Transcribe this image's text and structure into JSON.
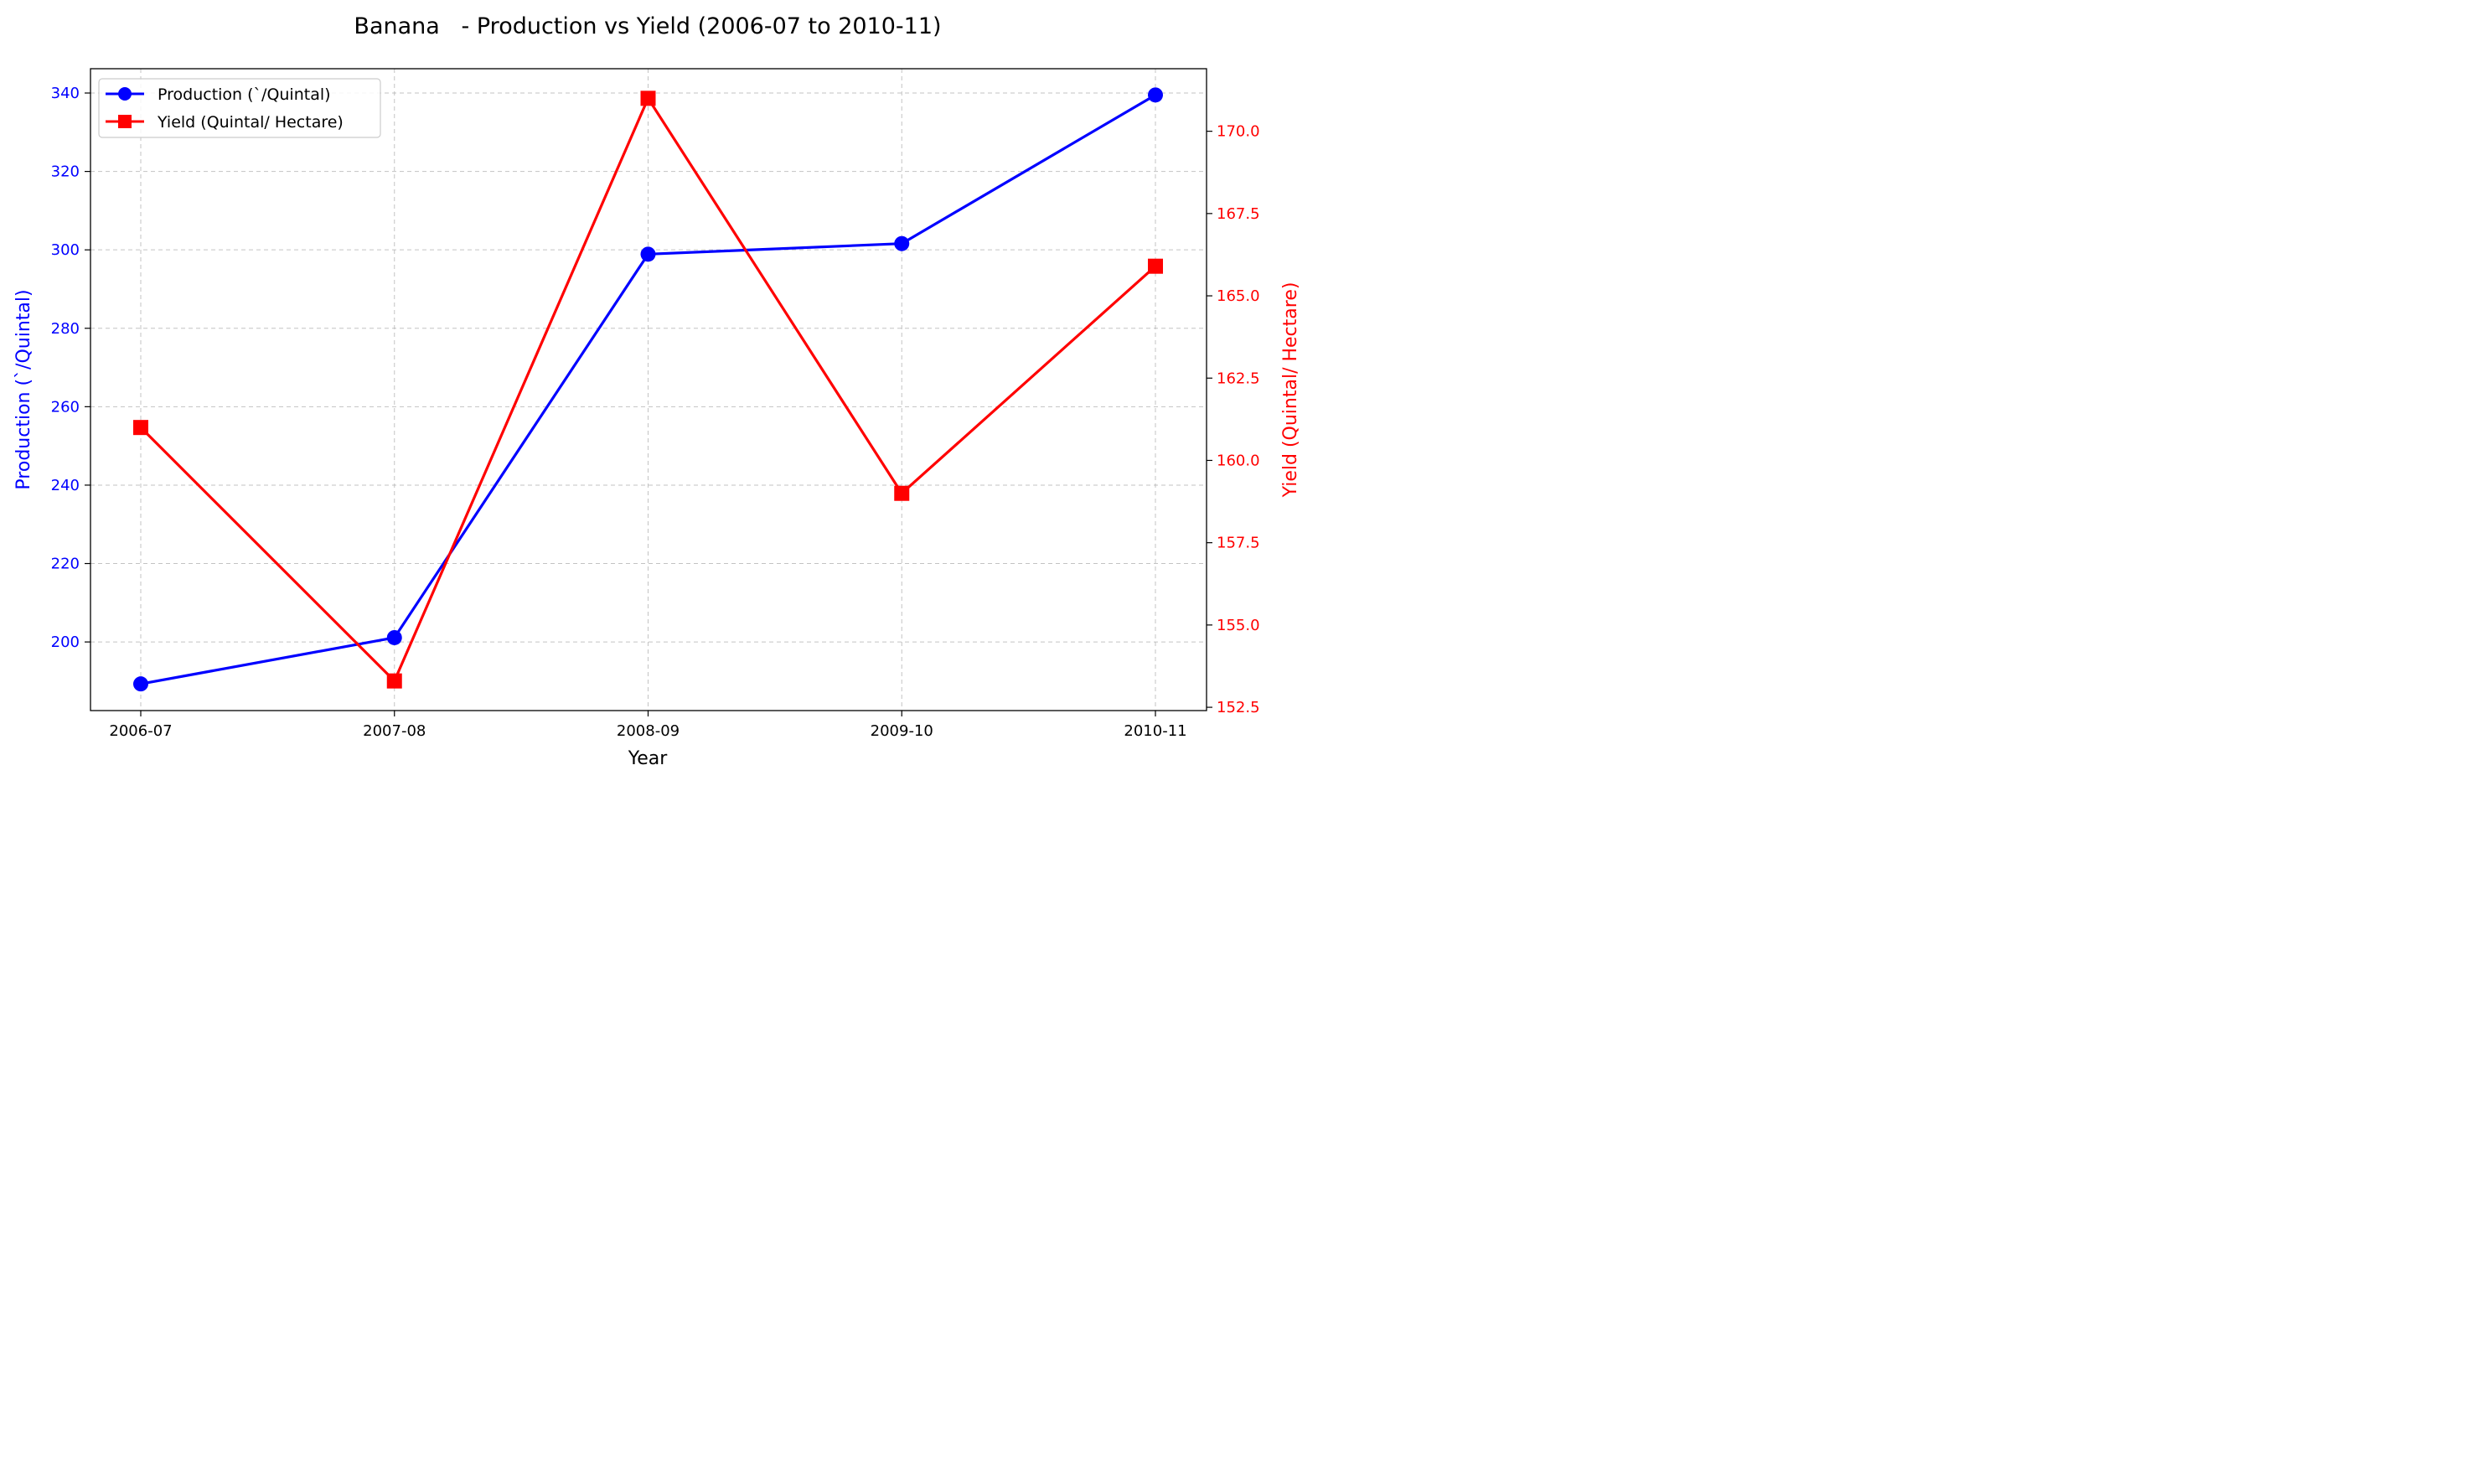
{
  "chart_data": {
    "type": "line",
    "title": "Banana   - Production vs Yield (2006-07 to 2010-11)",
    "xlabel": "Year",
    "categories": [
      "2006-07",
      "2007-08",
      "2008-09",
      "2009-10",
      "2010-11"
    ],
    "grid": true,
    "legend_position": "top-left",
    "series": [
      {
        "name": "Production (`/Quintal)",
        "axis": "left",
        "color": "#0000ff",
        "marker": "circle",
        "values": [
          189.3,
          201.1,
          298.9,
          301.6,
          339.5
        ]
      },
      {
        "name": "Yield (Quintal/ Hectare)",
        "axis": "right",
        "color": "#ff0000",
        "marker": "square",
        "values": [
          161.0,
          153.3,
          171.0,
          159.0,
          165.9
        ]
      }
    ],
    "y_left": {
      "label": "Production (`/Quintal)",
      "color": "#0000ff",
      "range": [
        182.5,
        346.2
      ],
      "ticks": [
        "200",
        "220",
        "240",
        "260",
        "280",
        "300",
        "320",
        "340"
      ]
    },
    "y_right": {
      "label": "Yield (Quintal/ Hectare)",
      "color": "#ff0000",
      "range": [
        152.4,
        171.9
      ],
      "ticks": [
        "152.5",
        "155.0",
        "157.5",
        "160.0",
        "162.5",
        "165.0",
        "167.5",
        "170.0"
      ]
    }
  }
}
